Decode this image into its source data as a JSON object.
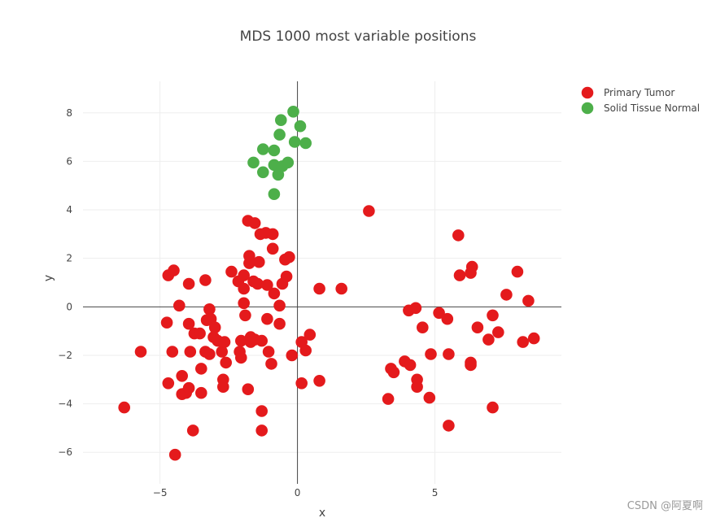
{
  "chart_data": {
    "type": "scatter",
    "title": "MDS 1000 most variable positions",
    "xlabel": "x",
    "ylabel": "y",
    "xlim": [
      -7.8,
      9.6
    ],
    "ylim": [
      -7.3,
      9.3
    ],
    "xticks": [
      -5,
      0,
      5
    ],
    "yticks": [
      -6,
      -4,
      -2,
      0,
      2,
      4,
      6,
      8
    ],
    "tick_labels_x": [
      "−5",
      "0",
      "5"
    ],
    "tick_labels_y": [
      "−6",
      "−4",
      "−2",
      "0",
      "2",
      "4",
      "6",
      "8"
    ],
    "grid": true,
    "zero_lines": true,
    "legend_position": "top-right",
    "series": [
      {
        "name": "Primary Tumor",
        "color": "#e41a1c",
        "points": [
          [
            -6.3,
            -4.15
          ],
          [
            -5.7,
            -1.85
          ],
          [
            -4.75,
            -0.65
          ],
          [
            -4.7,
            1.3
          ],
          [
            -4.7,
            -3.15
          ],
          [
            -4.55,
            -1.85
          ],
          [
            -4.5,
            1.5
          ],
          [
            -4.45,
            -6.1
          ],
          [
            -4.3,
            0.05
          ],
          [
            -4.2,
            -2.85
          ],
          [
            -4.2,
            -3.6
          ],
          [
            -4.05,
            -3.55
          ],
          [
            -3.95,
            0.95
          ],
          [
            -3.95,
            -0.7
          ],
          [
            -3.95,
            -3.35
          ],
          [
            -3.9,
            -1.85
          ],
          [
            -3.8,
            -5.1
          ],
          [
            -3.75,
            -1.1
          ],
          [
            -3.55,
            -1.1
          ],
          [
            -3.5,
            -2.55
          ],
          [
            -3.5,
            -3.55
          ],
          [
            -3.35,
            1.1
          ],
          [
            -3.35,
            -1.85
          ],
          [
            -3.3,
            -0.55
          ],
          [
            -3.2,
            -0.1
          ],
          [
            -3.2,
            -1.95
          ],
          [
            -3.15,
            -0.5
          ],
          [
            -3.05,
            -1.25
          ],
          [
            -3.0,
            -0.85
          ],
          [
            -2.9,
            -1.4
          ],
          [
            -2.75,
            -1.85
          ],
          [
            -2.7,
            -3.0
          ],
          [
            -2.7,
            -3.3
          ],
          [
            -2.65,
            -1.45
          ],
          [
            -2.6,
            -2.3
          ],
          [
            -2.4,
            1.45
          ],
          [
            -2.15,
            1.05
          ],
          [
            -2.1,
            -1.85
          ],
          [
            -2.05,
            -2.1
          ],
          [
            -2.05,
            -1.4
          ],
          [
            -1.95,
            0.15
          ],
          [
            -1.95,
            0.75
          ],
          [
            -1.95,
            1.3
          ],
          [
            -1.9,
            -0.35
          ],
          [
            -1.8,
            3.55
          ],
          [
            -1.8,
            -3.4
          ],
          [
            -1.75,
            2.1
          ],
          [
            -1.75,
            1.8
          ],
          [
            -1.7,
            -1.25
          ],
          [
            -1.7,
            -1.45
          ],
          [
            -1.6,
            1.05
          ],
          [
            -1.55,
            3.45
          ],
          [
            -1.55,
            -1.35
          ],
          [
            -1.45,
            0.95
          ],
          [
            -1.4,
            1.85
          ],
          [
            -1.35,
            3.0
          ],
          [
            -1.3,
            -1.4
          ],
          [
            -1.3,
            -4.3
          ],
          [
            -1.3,
            -5.1
          ],
          [
            -1.15,
            3.05
          ],
          [
            -1.1,
            0.9
          ],
          [
            -1.1,
            -0.5
          ],
          [
            -1.05,
            -1.85
          ],
          [
            -0.95,
            -2.35
          ],
          [
            -0.9,
            3.0
          ],
          [
            -0.9,
            2.4
          ],
          [
            -0.85,
            0.55
          ],
          [
            -0.65,
            0.05
          ],
          [
            -0.65,
            -0.7
          ],
          [
            -0.55,
            0.95
          ],
          [
            -0.45,
            1.95
          ],
          [
            -0.4,
            1.25
          ],
          [
            -0.3,
            2.05
          ],
          [
            -0.2,
            -2.0
          ],
          [
            0.15,
            -3.15
          ],
          [
            0.15,
            -1.45
          ],
          [
            0.3,
            -1.8
          ],
          [
            0.45,
            -1.15
          ],
          [
            0.8,
            0.75
          ],
          [
            0.8,
            -3.05
          ],
          [
            1.6,
            0.75
          ],
          [
            2.6,
            3.95
          ],
          [
            3.3,
            -3.8
          ],
          [
            3.4,
            -2.55
          ],
          [
            3.5,
            -2.7
          ],
          [
            3.9,
            -2.25
          ],
          [
            4.05,
            -0.15
          ],
          [
            4.1,
            -2.4
          ],
          [
            4.3,
            -0.05
          ],
          [
            4.35,
            -3.0
          ],
          [
            4.35,
            -3.3
          ],
          [
            4.55,
            -0.85
          ],
          [
            4.8,
            -3.75
          ],
          [
            4.85,
            -1.95
          ],
          [
            5.15,
            -0.25
          ],
          [
            5.45,
            -0.5
          ],
          [
            5.5,
            -1.95
          ],
          [
            5.5,
            -4.9
          ],
          [
            5.85,
            2.95
          ],
          [
            5.9,
            1.3
          ],
          [
            6.3,
            1.4
          ],
          [
            6.35,
            1.65
          ],
          [
            6.3,
            -2.3
          ],
          [
            6.3,
            -2.4
          ],
          [
            6.55,
            -0.85
          ],
          [
            6.95,
            -1.35
          ],
          [
            7.1,
            -0.35
          ],
          [
            7.1,
            -4.15
          ],
          [
            7.3,
            -1.05
          ],
          [
            7.6,
            0.5
          ],
          [
            8.0,
            1.45
          ],
          [
            8.2,
            -1.45
          ],
          [
            8.4,
            0.25
          ],
          [
            8.6,
            -1.3
          ]
        ]
      },
      {
        "name": "Solid Tissue Normal",
        "color": "#4daf4a",
        "points": [
          [
            -1.6,
            5.95
          ],
          [
            -1.25,
            6.5
          ],
          [
            -1.25,
            5.55
          ],
          [
            -0.85,
            6.45
          ],
          [
            -0.85,
            5.85
          ],
          [
            -0.85,
            4.65
          ],
          [
            -0.7,
            5.45
          ],
          [
            -0.65,
            7.1
          ],
          [
            -0.6,
            7.7
          ],
          [
            -0.55,
            5.8
          ],
          [
            -0.35,
            5.95
          ],
          [
            -0.15,
            8.05
          ],
          [
            -0.1,
            6.8
          ],
          [
            0.1,
            7.45
          ],
          [
            0.3,
            6.75
          ]
        ]
      }
    ]
  },
  "watermark": "CSDN @阿夏啊"
}
